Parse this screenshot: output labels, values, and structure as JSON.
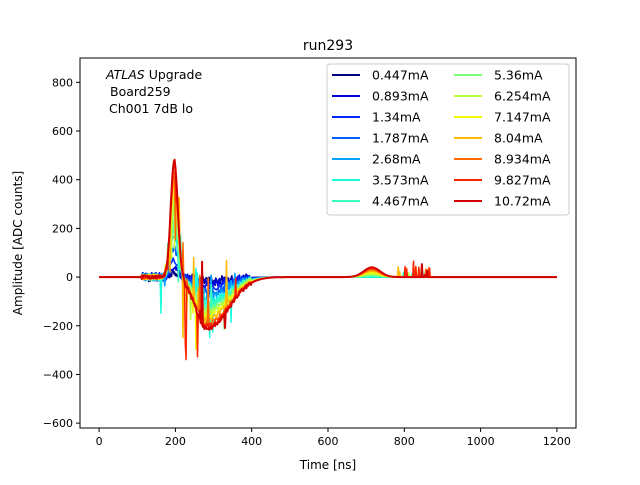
{
  "chart_data": {
    "type": "line",
    "title": "run293",
    "xlabel": "Time [ns]",
    "ylabel": "Amplitude [ADC counts]",
    "xlim": [
      -50,
      1250
    ],
    "ylim": [
      -620,
      900
    ],
    "xticks": [
      0,
      200,
      400,
      600,
      800,
      1000,
      1200
    ],
    "yticks": [
      -600,
      -400,
      -200,
      0,
      200,
      400,
      600,
      800
    ],
    "grid": false,
    "legend_position": "top-right",
    "legend_columns": 2,
    "annotation": {
      "line1_italic": "ATLAS",
      "line1_rest": " Upgrade",
      "line2": "Board259",
      "line3": "Ch001 7dB lo"
    },
    "series": [
      {
        "name": "0.447mA",
        "color": "#00007f",
        "peak": 25,
        "undershoot": -15,
        "bump": 0,
        "spike": 0
      },
      {
        "name": "0.893mA",
        "color": "#0000d4",
        "peak": 45,
        "undershoot": -25,
        "bump": 0,
        "spike": 0
      },
      {
        "name": "1.34mA",
        "color": "#0026ff",
        "peak": 75,
        "undershoot": -40,
        "bump": 0,
        "spike": 0
      },
      {
        "name": "1.787mA",
        "color": "#0060ff",
        "peak": 120,
        "undershoot": -60,
        "bump": 0,
        "spike": 0
      },
      {
        "name": "2.68mA",
        "color": "#00a4ff",
        "peak": 170,
        "undershoot": -80,
        "bump": 0,
        "spike": 0
      },
      {
        "name": "3.573mA",
        "color": "#19ffde",
        "peak": 210,
        "undershoot": -100,
        "bump": 0,
        "spike": 0
      },
      {
        "name": "4.467mA",
        "color": "#3dffb9",
        "peak": 245,
        "undershoot": -115,
        "bump": 3,
        "spike": 0
      },
      {
        "name": "5.36mA",
        "color": "#7cff79",
        "peak": 290,
        "undershoot": -130,
        "bump": 8,
        "spike": 0
      },
      {
        "name": "6.254mA",
        "color": "#b9ff3d",
        "peak": 330,
        "undershoot": -145,
        "bump": 12,
        "spike": 0
      },
      {
        "name": "7.147mA",
        "color": "#f4f802",
        "peak": 370,
        "undershoot": -160,
        "bump": 18,
        "spike": 0
      },
      {
        "name": "8.04mA",
        "color": "#ffb900",
        "peak": 400,
        "undershoot": -175,
        "bump": 24,
        "spike": 0
      },
      {
        "name": "8.934mA",
        "color": "#ff6a00",
        "peak": 430,
        "undershoot": -190,
        "bump": 30,
        "spike": 0
      },
      {
        "name": "9.827mA",
        "color": "#ff2300",
        "peak": 460,
        "undershoot": -200,
        "bump": 35,
        "spike": 0
      },
      {
        "name": "10.72mA",
        "color": "#d40000",
        "peak": 480,
        "undershoot": -210,
        "bump": 40,
        "spike": 0
      }
    ]
  }
}
